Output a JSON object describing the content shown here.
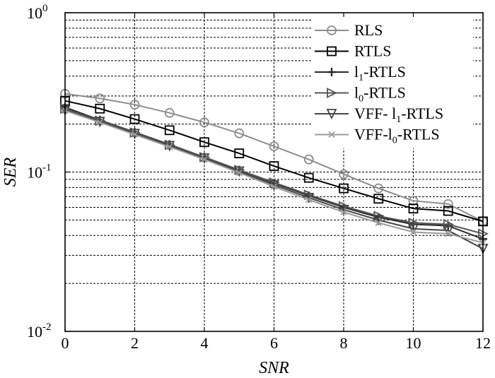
{
  "chart_data": {
    "type": "line",
    "xlabel": "SNR",
    "ylabel": "SER",
    "xlim": [
      0,
      12
    ],
    "ylim": [
      0.01,
      1
    ],
    "yscale": "log",
    "grid": true,
    "legend_position": "top-right",
    "x_ticks": [
      0,
      2,
      4,
      6,
      8,
      10,
      12
    ],
    "y_ticks": [
      {
        "value": 0.01,
        "base": "10",
        "exp": "-2"
      },
      {
        "value": 0.1,
        "base": "10",
        "exp": "-1"
      },
      {
        "value": 1,
        "base": "10",
        "exp": "0"
      }
    ],
    "x": [
      0,
      1,
      2,
      3,
      4,
      5,
      6,
      7,
      8,
      9,
      10,
      11,
      12
    ],
    "series": [
      {
        "name": "RLS",
        "legend_base": "RLS",
        "legend_sub": "",
        "legend_rest": "",
        "color": "#8c8c8c",
        "marker": "circle",
        "values": [
          0.31,
          0.29,
          0.265,
          0.235,
          0.205,
          0.175,
          0.145,
          0.12,
          0.097,
          0.079,
          0.066,
          0.063,
          0.049
        ]
      },
      {
        "name": "RTLS",
        "legend_base": "RTLS",
        "legend_sub": "",
        "legend_rest": "",
        "color": "#000000",
        "marker": "square",
        "values": [
          0.28,
          0.25,
          0.215,
          0.183,
          0.154,
          0.131,
          0.109,
          0.092,
          0.079,
          0.068,
          0.059,
          0.057,
          0.049
        ]
      },
      {
        "name": "l1-RTLS",
        "legend_base": "l",
        "legend_sub": "1",
        "legend_rest": "-RTLS",
        "color": "#2a2a2a",
        "marker": "plus",
        "values": [
          0.255,
          0.212,
          0.178,
          0.149,
          0.124,
          0.103,
          0.085,
          0.071,
          0.06,
          0.052,
          0.047,
          0.046,
          0.038
        ]
      },
      {
        "name": "l0-RTLS",
        "legend_base": "l",
        "legend_sub": "0",
        "legend_rest": "-RTLS",
        "color": "#555555",
        "marker": "tri-right",
        "values": [
          0.25,
          0.21,
          0.177,
          0.148,
          0.124,
          0.103,
          0.086,
          0.072,
          0.061,
          0.053,
          0.048,
          0.047,
          0.041
        ]
      },
      {
        "name": "VFF- l1-RTLS",
        "legend_base": "VFF- l",
        "legend_sub": "1",
        "legend_rest": "-RTLS",
        "color": "#444444",
        "marker": "tri-down",
        "values": [
          0.245,
          0.207,
          0.174,
          0.146,
          0.122,
          0.101,
          0.083,
          0.069,
          0.058,
          0.05,
          0.044,
          0.043,
          0.033
        ]
      },
      {
        "name": "VFF-l0-RTLS",
        "legend_base": "VFF-l",
        "legend_sub": "0",
        "legend_rest": "-RTLS",
        "color": "#9a9a9a",
        "marker": "x",
        "values": [
          0.243,
          0.205,
          0.172,
          0.144,
          0.12,
          0.099,
          0.081,
          0.067,
          0.056,
          0.048,
          0.042,
          0.041,
          0.036
        ]
      }
    ]
  }
}
